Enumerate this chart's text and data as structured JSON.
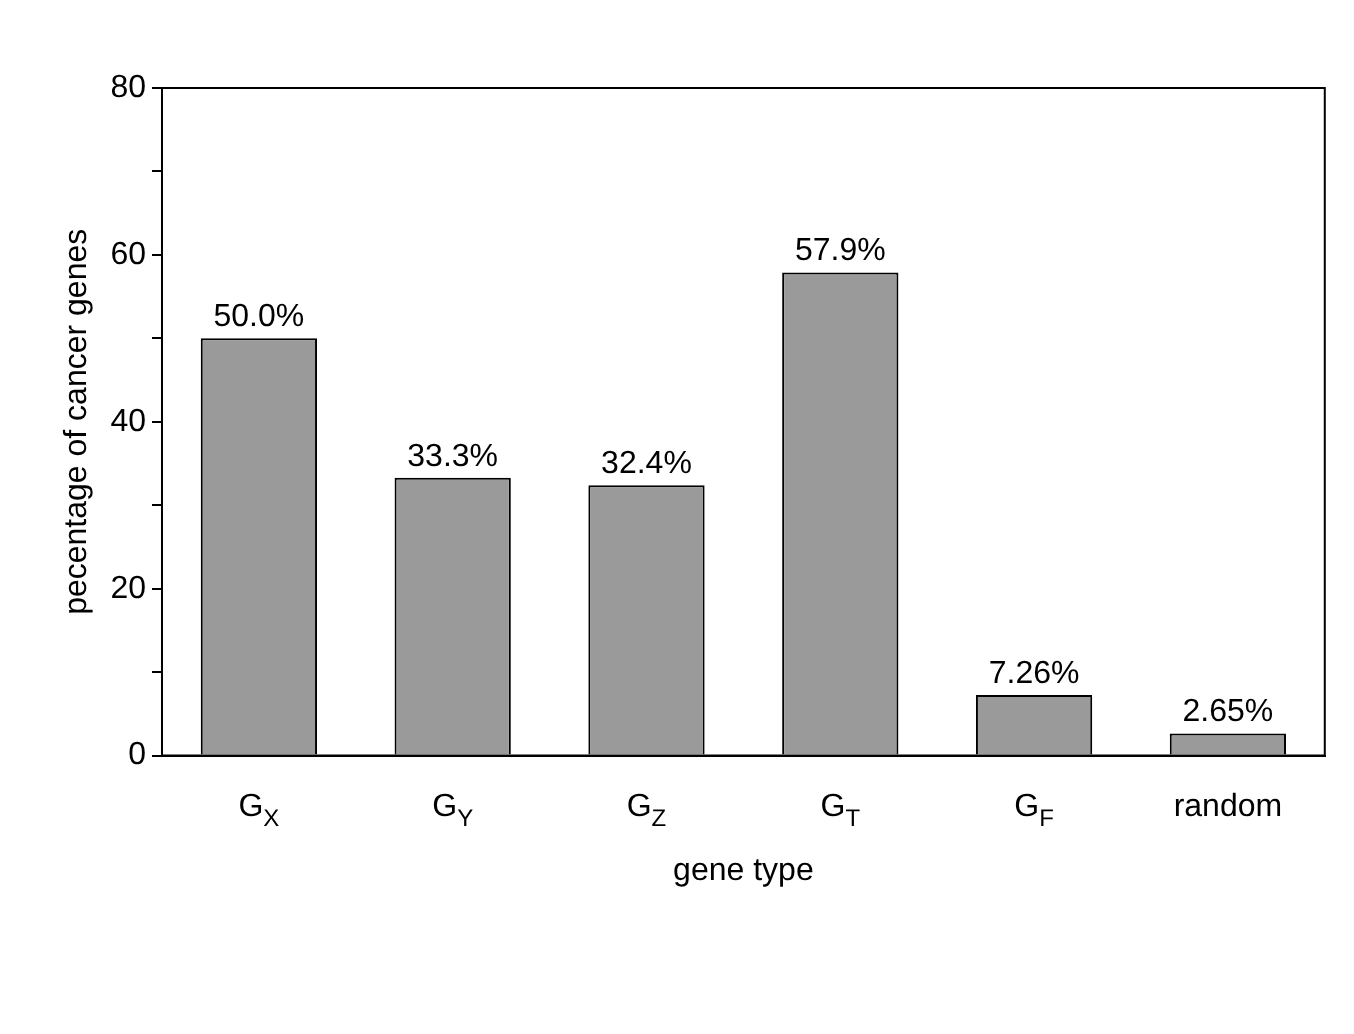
{
  "chart_data": {
    "type": "bar",
    "xlabel": "gene type",
    "ylabel": "pecentage of cancer genes",
    "categories": [
      "G$_{X}$",
      "G$_{Y}$",
      "G$_{Z}$",
      "G$_{T}$",
      "G$_{F}$",
      "random"
    ],
    "values": [
      50.0,
      33.3,
      32.4,
      57.9,
      7.26,
      2.65
    ],
    "value_labels": [
      "50.0%",
      "33.3%",
      "32.4%",
      "57.9%",
      "7.26%",
      "2.65%"
    ],
    "color": "#9a9a9a",
    "ylim": [
      0,
      80
    ],
    "yticks": [
      0,
      {
        "value": 10,
        "label": null
      },
      20,
      {
        "value": 30,
        "label": null
      },
      40,
      {
        "value": 50,
        "label": null
      },
      60,
      {
        "value": 70,
        "label": null
      },
      80
    ],
    "grid": false,
    "legend": false
  }
}
